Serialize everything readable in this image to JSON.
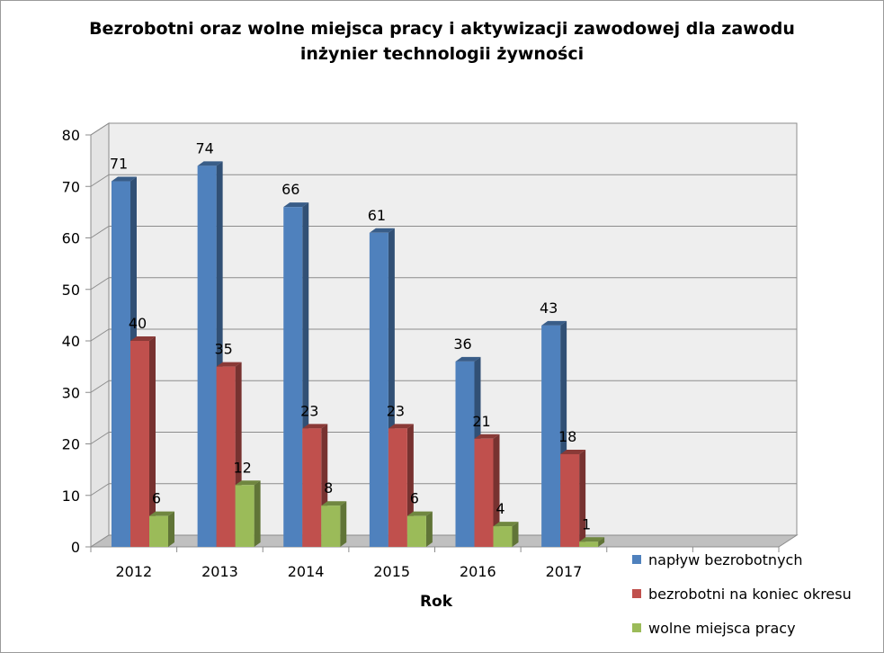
{
  "title_line1": "Bezrobotni oraz wolne miejsca pracy i aktywizacji zawodowej dla zawodu",
  "title_line2": "inżynier technologii żywności",
  "chart_data": {
    "type": "bar",
    "title": "Bezrobotni oraz wolne miejsca pracy i aktywizacji zawodowej dla zawodu inżynier technologii żywności",
    "xlabel": "Rok",
    "ylabel": "",
    "categories": [
      "2012",
      "2013",
      "2014",
      "2015",
      "2016",
      "2017"
    ],
    "ylim": [
      0,
      80
    ],
    "yticks": [
      "0",
      "10",
      "20",
      "30",
      "40",
      "50",
      "60",
      "70",
      "80"
    ],
    "grid": true,
    "legend_position": "bottom-right",
    "series": [
      {
        "name": "napływ bezrobotnych",
        "values": [
          71,
          74,
          66,
          61,
          36,
          43
        ],
        "color": "#4F81BD"
      },
      {
        "name": "bezrobotni na koniec okresu",
        "values": [
          40,
          35,
          23,
          23,
          21,
          18
        ],
        "color": "#C0504D"
      },
      {
        "name": "wolne miejsca pracy",
        "values": [
          6,
          12,
          8,
          6,
          4,
          1
        ],
        "color": "#9BBB59"
      }
    ]
  }
}
